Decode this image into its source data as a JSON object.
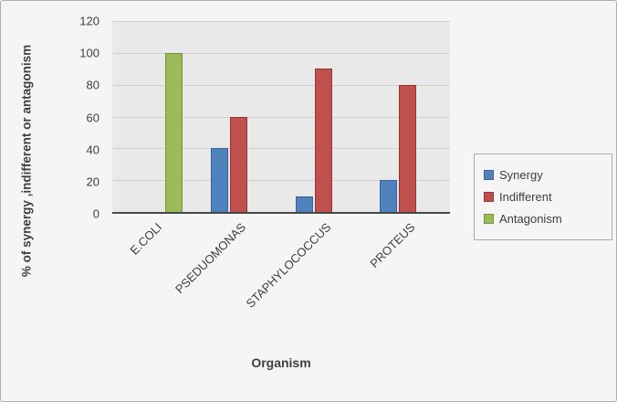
{
  "chart_data": {
    "type": "bar",
    "categories": [
      "E.COLI",
      "PSEDUOMONAS",
      "STAPHYLOCOCCUS",
      "PROTEUS"
    ],
    "series": [
      {
        "name": "Synergy",
        "color": "#4F81BD",
        "border_color": "#3A6494",
        "values": [
          0,
          40,
          10,
          20
        ]
      },
      {
        "name": "Indifferent",
        "color": "#C0504D",
        "border_color": "#953735",
        "values": [
          0,
          60,
          90,
          80
        ]
      },
      {
        "name": "Antagonism",
        "color": "#9BBB59",
        "border_color": "#77933C",
        "values": [
          100,
          0,
          0,
          0
        ]
      }
    ],
    "title": "",
    "xlabel": "Organism",
    "ylabel": "% of synergy ,indifferent or antagonism",
    "ylim": [
      0,
      120
    ],
    "ytick_step": 20,
    "grid": true,
    "legend_position": "right",
    "plot_background": "#e9e9e9",
    "axis_line_color": "#474747"
  }
}
